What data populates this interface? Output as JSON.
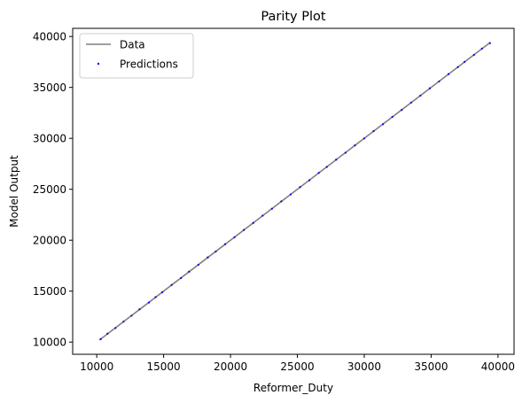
{
  "chart_data": {
    "type": "scatter",
    "title": "Parity Plot",
    "xlabel": "Reformer_Duty",
    "ylabel": "Model Output",
    "xlim": [
      8200,
      41200
    ],
    "ylim": [
      8800,
      40800
    ],
    "xticks": [
      10000,
      15000,
      20000,
      25000,
      30000,
      35000,
      40000
    ],
    "yticks": [
      10000,
      15000,
      20000,
      25000,
      30000,
      35000,
      40000
    ],
    "grid": false,
    "legend": {
      "placement": "top-left",
      "entries": [
        "Data",
        "Predictions"
      ]
    },
    "series": [
      {
        "name": "Data",
        "kind": "line",
        "color": "#808080",
        "x": [
          10200,
          39400
        ],
        "y": [
          10200,
          39400
        ]
      },
      {
        "name": "Predictions",
        "kind": "scatter",
        "color": "#0000ff",
        "x": [
          10300,
          10800,
          11400,
          12000,
          12600,
          13200,
          13900,
          14400,
          14900,
          15600,
          16300,
          16900,
          17600,
          18300,
          18900,
          19600,
          20300,
          21000,
          21700,
          22400,
          23100,
          23800,
          24500,
          25200,
          25900,
          26600,
          27200,
          27900,
          28600,
          29300,
          30000,
          30700,
          31400,
          32100,
          32800,
          33500,
          34200,
          34900,
          35600,
          36300,
          37000,
          37500,
          38200,
          38800,
          39400
        ],
        "y": [
          10290,
          10820,
          11380,
          12010,
          12590,
          13210,
          13880,
          14410,
          14890,
          15610,
          16290,
          16910,
          17590,
          18310,
          18890,
          19610,
          20290,
          21010,
          21690,
          22410,
          23090,
          23810,
          24490,
          25210,
          25890,
          26610,
          27190,
          27910,
          28590,
          29310,
          29990,
          30710,
          31390,
          32110,
          32790,
          33510,
          34190,
          34910,
          35590,
          36310,
          36990,
          37510,
          38190,
          38810,
          39350
        ]
      }
    ]
  }
}
